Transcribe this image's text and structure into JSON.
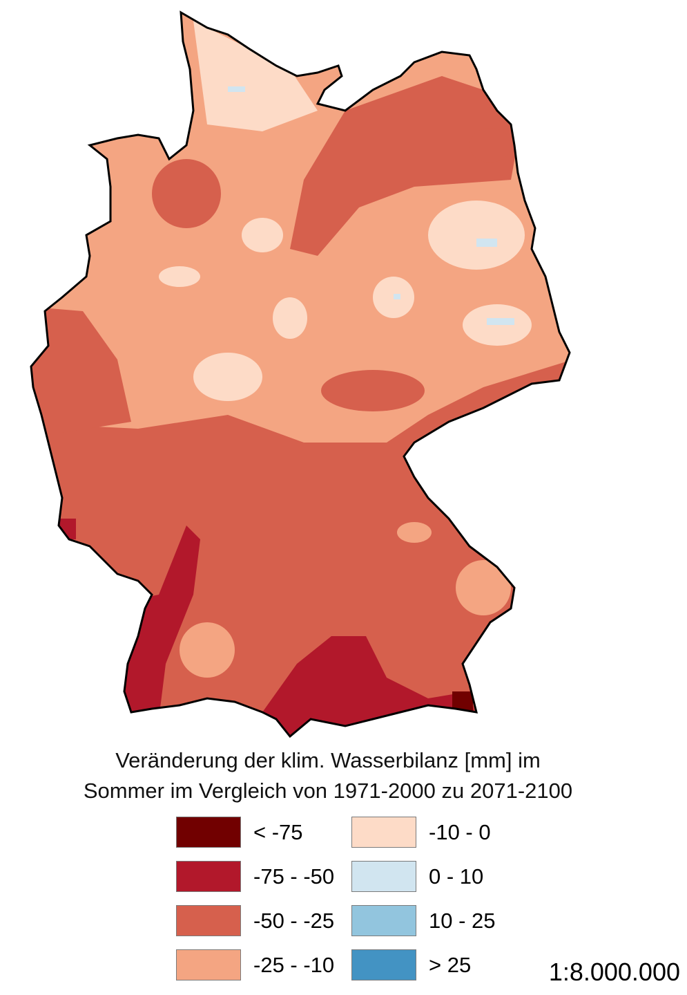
{
  "legend": {
    "title_line1": "Veränderung der klim. Wasserbilanz [mm] im",
    "title_line2": "Sommer im Vergleich von 1971-2000 zu 2071-2100",
    "classes": [
      {
        "label": "< -75",
        "color": "#710000"
      },
      {
        "label": "-75 - -50",
        "color": "#b2182b"
      },
      {
        "label": "-50 - -25",
        "color": "#d6604d"
      },
      {
        "label": "-25 - -10",
        "color": "#f4a582"
      },
      {
        "label": "-10 - 0",
        "color": "#fddbc7"
      },
      {
        "label": "0 - 10",
        "color": "#d1e5f0"
      },
      {
        "label": "10 - 25",
        "color": "#92c5de"
      },
      {
        "label": "> 25",
        "color": "#4393c3"
      }
    ]
  },
  "scale": "1:8.000.000"
}
